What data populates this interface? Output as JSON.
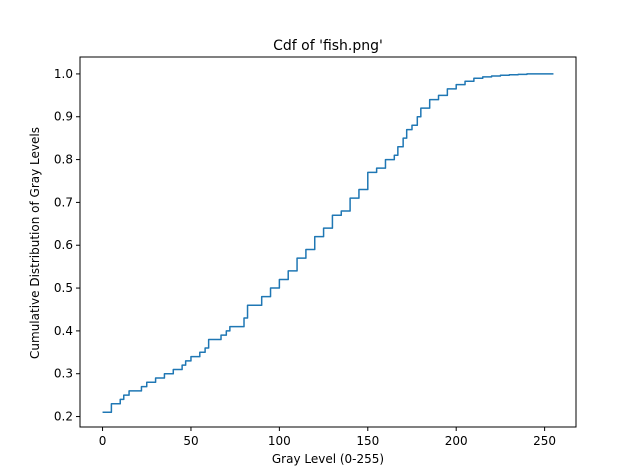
{
  "chart_data": {
    "type": "line",
    "title": "Cdf of 'fish.png'",
    "xlabel": "Gray Level (0-255)",
    "ylabel": "Cumulative Distribution of Gray Levels",
    "xlim": [
      -12.75,
      267.75
    ],
    "ylim": [
      0.1756,
      1.0395
    ],
    "x_ticks": [
      0,
      50,
      100,
      150,
      200,
      250
    ],
    "x_tick_labels": [
      "0",
      "50",
      "100",
      "150",
      "200",
      "250"
    ],
    "y_ticks": [
      0.2,
      0.3,
      0.4,
      0.5,
      0.6,
      0.7,
      0.8,
      0.9,
      1.0
    ],
    "y_tick_labels": [
      "0.2",
      "0.3",
      "0.4",
      "0.5",
      "0.6",
      "0.7",
      "0.8",
      "0.9",
      "1.0"
    ],
    "grid": false,
    "series": [
      {
        "color": "#1f77b4",
        "x": [
          0,
          4,
          5,
          10,
          12,
          15,
          20,
          22,
          25,
          30,
          35,
          40,
          45,
          47,
          50,
          52,
          55,
          58,
          60,
          65,
          67,
          70,
          72,
          75,
          80,
          82,
          85,
          90,
          95,
          100,
          105,
          110,
          115,
          120,
          125,
          130,
          135,
          140,
          145,
          150,
          155,
          160,
          165,
          167,
          170,
          172,
          175,
          178,
          180,
          185,
          190,
          195,
          200,
          205,
          210,
          215,
          220,
          225,
          230,
          235,
          240,
          245,
          250,
          255
        ],
        "y": [
          0.21,
          0.21,
          0.23,
          0.24,
          0.25,
          0.26,
          0.26,
          0.27,
          0.28,
          0.29,
          0.3,
          0.31,
          0.32,
          0.33,
          0.34,
          0.34,
          0.35,
          0.36,
          0.38,
          0.38,
          0.39,
          0.4,
          0.41,
          0.41,
          0.43,
          0.46,
          0.46,
          0.48,
          0.5,
          0.52,
          0.54,
          0.57,
          0.59,
          0.62,
          0.64,
          0.67,
          0.68,
          0.71,
          0.73,
          0.77,
          0.78,
          0.8,
          0.81,
          0.83,
          0.85,
          0.87,
          0.88,
          0.9,
          0.92,
          0.94,
          0.95,
          0.965,
          0.975,
          0.983,
          0.99,
          0.993,
          0.995,
          0.997,
          0.998,
          0.999,
          1.0,
          1.0,
          1.0,
          1.0
        ]
      }
    ]
  }
}
